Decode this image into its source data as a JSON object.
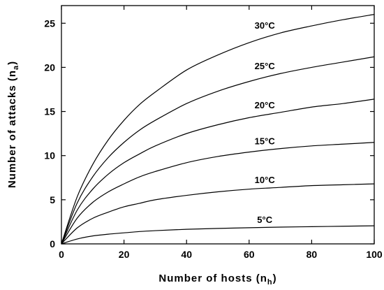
{
  "chart_data": {
    "type": "line",
    "title": "",
    "xlabel": {
      "main": "Number of hosts (n",
      "sub": "h",
      "close": ")"
    },
    "ylabel": {
      "main": "Number of attacks (n",
      "sub": "a",
      "close": ")"
    },
    "xlim": [
      0,
      100
    ],
    "ylim": [
      0,
      27
    ],
    "xticks": [
      0,
      20,
      40,
      60,
      80,
      100
    ],
    "yticks": [
      0,
      5,
      10,
      15,
      20,
      25
    ],
    "grid": false,
    "x": [
      0,
      5,
      10,
      15,
      20,
      25,
      30,
      40,
      50,
      60,
      70,
      80,
      90,
      100
    ],
    "series": [
      {
        "name": "30°C",
        "values": [
          0,
          5.3,
          9.0,
          11.8,
          14.0,
          15.8,
          17.2,
          19.7,
          21.4,
          22.8,
          23.9,
          24.7,
          25.4,
          26.0
        ]
      },
      {
        "name": "25°C",
        "values": [
          0,
          4.6,
          7.6,
          9.8,
          11.5,
          12.9,
          14.0,
          15.9,
          17.3,
          18.4,
          19.3,
          20.0,
          20.6,
          21.2
        ]
      },
      {
        "name": "20°C",
        "values": [
          0,
          3.8,
          6.2,
          7.9,
          9.2,
          10.2,
          11.1,
          12.5,
          13.5,
          14.3,
          14.9,
          15.5,
          15.9,
          16.4
        ]
      },
      {
        "name": "15°C",
        "values": [
          0,
          2.9,
          4.7,
          5.9,
          6.8,
          7.6,
          8.2,
          9.2,
          9.9,
          10.4,
          10.8,
          11.1,
          11.3,
          11.5
        ]
      },
      {
        "name": "10°C",
        "values": [
          0,
          1.8,
          2.9,
          3.6,
          4.2,
          4.6,
          5.0,
          5.5,
          5.9,
          6.2,
          6.4,
          6.6,
          6.7,
          6.8
        ]
      },
      {
        "name": "5°C",
        "values": [
          0,
          0.55,
          0.9,
          1.1,
          1.25,
          1.4,
          1.5,
          1.65,
          1.75,
          1.83,
          1.9,
          1.95,
          2.0,
          2.05
        ]
      }
    ],
    "line_color": "#000000"
  }
}
